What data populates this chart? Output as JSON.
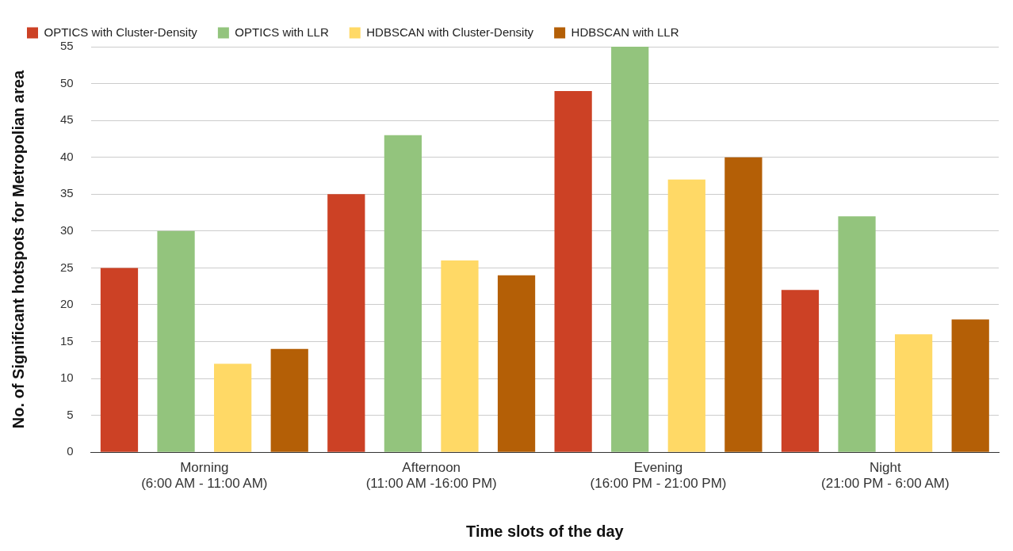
{
  "chart_data": {
    "type": "bar",
    "xlabel": "Time slots of the day",
    "ylabel": "No. of Significant hotspots for Metropolian area",
    "categories": [
      "Morning\n(6:00 AM - 11:00 AM)",
      "Afternoon\n(11:00 AM -16:00 PM)",
      "Evening\n(16:00 PM - 21:00 PM)",
      "Night\n(21:00 PM - 6:00 AM)"
    ],
    "series": [
      {
        "name": "OPTICS with Cluster-Density",
        "color": "#cc4125",
        "values": [
          25,
          35,
          49,
          22
        ]
      },
      {
        "name": "OPTICS with LLR",
        "color": "#93c47d",
        "values": [
          30,
          43,
          55,
          32
        ]
      },
      {
        "name": "HDBSCAN with Cluster-Density",
        "color": "#ffd966",
        "values": [
          12,
          26,
          37,
          16
        ]
      },
      {
        "name": "HDBSCAN with LLR",
        "color": "#b45f06",
        "values": [
          14,
          24,
          40,
          18
        ]
      }
    ],
    "ylim": [
      0,
      55
    ],
    "yticks": [
      0,
      5,
      10,
      15,
      20,
      25,
      30,
      35,
      40,
      45,
      50,
      55
    ],
    "grid": "y",
    "legend": "top"
  }
}
